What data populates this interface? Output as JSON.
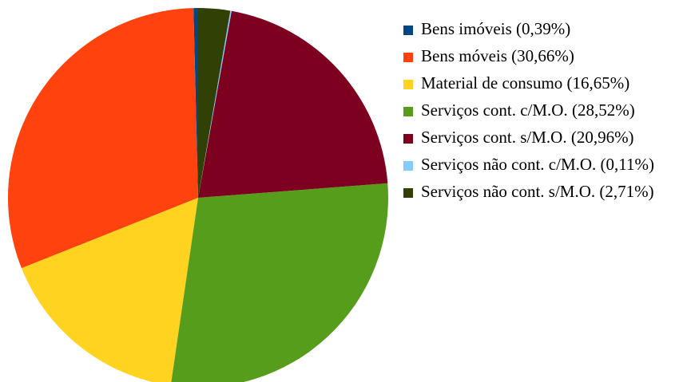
{
  "chart_data": {
    "type": "pie",
    "categories": [
      "Bens imóveis (0,39%)",
      "Bens móveis (30,66%)",
      "Material de consumo (16,65%)",
      "Serviços cont. c/M.O. (28,52%)",
      "Serviços cont. s/M.O. (20,96%)",
      "Serviços não cont. c/M.O. (0,11%)",
      "Serviços não cont. s/M.O. (2,71%)"
    ],
    "values": [
      0.39,
      30.66,
      16.65,
      28.52,
      20.96,
      0.11,
      2.71
    ],
    "colors": [
      "#004586",
      "#ff420e",
      "#ffd320",
      "#579d1c",
      "#7e0021",
      "#83caff",
      "#314004"
    ],
    "legend": "right"
  }
}
